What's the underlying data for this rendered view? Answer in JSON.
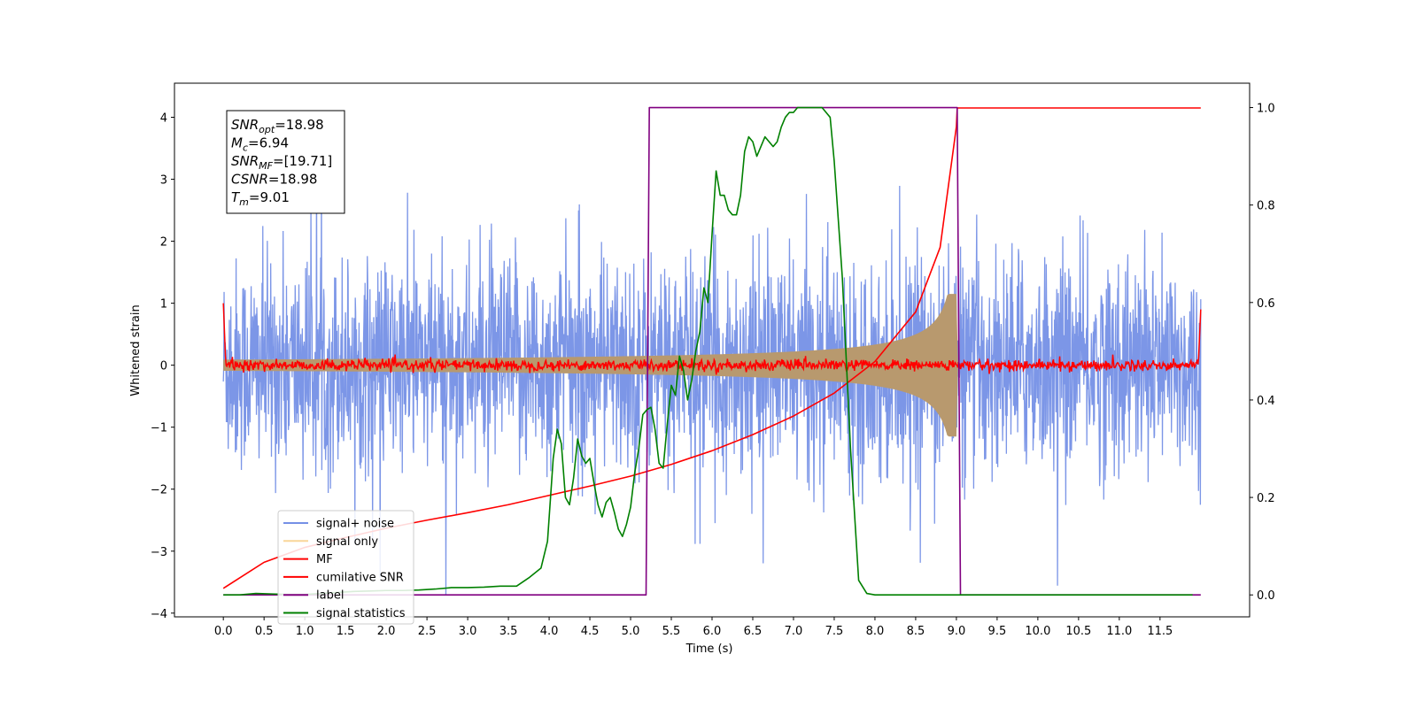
{
  "chart_data": {
    "type": "line",
    "xlabel": "Time (s)",
    "ylabel": "Whitened strain",
    "xlim": [
      -0.6,
      12.6
    ],
    "ylim": [
      -4.06,
      4.55
    ],
    "y2lim": [
      -0.045,
      1.05
    ],
    "x_ticks": [
      "0.0",
      "0.5",
      "1.0",
      "1.5",
      "2.0",
      "2.5",
      "3.0",
      "3.5",
      "4.0",
      "4.5",
      "5.0",
      "5.5",
      "6.0",
      "6.5",
      "7.0",
      "7.5",
      "8.0",
      "8.5",
      "9.0",
      "9.5",
      "10.0",
      "10.5",
      "11.0",
      "11.5"
    ],
    "y_ticks": [
      "4",
      "3",
      "2",
      "1",
      "0",
      "−1",
      "−2",
      "−3",
      "−4"
    ],
    "y2_ticks": [
      "1.0",
      "0.8",
      "0.6",
      "0.4",
      "0.2",
      "0.0"
    ],
    "grid": false,
    "legend_position": "lower-left",
    "annotations": [
      {
        "base": "SNR",
        "sub": "opt",
        "value": "=18.98"
      },
      {
        "base": "M",
        "sub": "c",
        "value": "=6.94"
      },
      {
        "base": "SNR",
        "sub": "MF",
        "value": "=[19.71]"
      },
      {
        "base": "CSNR",
        "sub": "",
        "value": "=18.98"
      },
      {
        "base": "T",
        "sub": "m",
        "value": "=9.01"
      }
    ],
    "series": [
      {
        "name": "signal+ noise",
        "color": "#7590e6",
        "axis": "left",
        "description_values": {
          "x_range": [
            0,
            12
          ],
          "amplitude_range": [
            -3.7,
            4.15
          ]
        }
      },
      {
        "name": "signal only",
        "color": "#f7c46c",
        "axis": "left",
        "description_values": {
          "peak_time": 9.0,
          "peak_amplitude": 1.1
        }
      },
      {
        "name": "MF",
        "color": "#ff0000",
        "axis": "left",
        "description_values": {
          "level": 0.0,
          "start": 1.0,
          "end": 0.9
        }
      },
      {
        "name": "cumilative SNR",
        "color": "#ff0000",
        "axis": "left",
        "x": [
          0.0,
          0.5,
          1.0,
          1.5,
          2.0,
          2.5,
          3.0,
          3.5,
          4.0,
          4.5,
          5.0,
          5.5,
          6.0,
          6.5,
          7.0,
          7.5,
          8.0,
          8.5,
          8.8,
          9.0,
          9.01,
          12.0
        ],
        "values": [
          -3.6,
          -3.18,
          -2.94,
          -2.78,
          -2.63,
          -2.5,
          -2.38,
          -2.25,
          -2.1,
          -1.95,
          -1.79,
          -1.6,
          -1.38,
          -1.12,
          -0.82,
          -0.45,
          0.06,
          0.86,
          1.9,
          3.85,
          4.15,
          4.15
        ]
      },
      {
        "name": "label",
        "color": "#800080",
        "axis": "right",
        "x": [
          0.0,
          5.19,
          5.21,
          5.23,
          9.0,
          9.01,
          9.05,
          12.0
        ],
        "values": [
          0,
          0,
          0.5,
          1,
          1,
          1,
          0,
          0
        ]
      },
      {
        "name": "signal statistics",
        "color": "#008000",
        "axis": "right",
        "x": [
          0.0,
          0.2,
          0.4,
          0.6,
          0.8,
          1.0,
          1.2,
          1.4,
          1.6,
          1.8,
          2.0,
          2.2,
          2.4,
          2.6,
          2.8,
          3.0,
          3.2,
          3.4,
          3.6,
          3.75,
          3.9,
          3.98,
          4.05,
          4.1,
          4.15,
          4.2,
          4.25,
          4.3,
          4.35,
          4.4,
          4.45,
          4.5,
          4.55,
          4.6,
          4.65,
          4.7,
          4.75,
          4.8,
          4.85,
          4.9,
          4.95,
          5.0,
          5.05,
          5.1,
          5.15,
          5.2,
          5.25,
          5.3,
          5.35,
          5.4,
          5.45,
          5.5,
          5.55,
          5.6,
          5.65,
          5.7,
          5.75,
          5.8,
          5.85,
          5.9,
          5.95,
          6.0,
          6.05,
          6.1,
          6.15,
          6.2,
          6.25,
          6.3,
          6.35,
          6.4,
          6.45,
          6.5,
          6.55,
          6.6,
          6.65,
          6.7,
          6.75,
          6.8,
          6.85,
          6.9,
          6.95,
          7.0,
          7.05,
          7.1,
          7.15,
          7.2,
          7.25,
          7.3,
          7.35,
          7.4,
          7.45,
          7.5,
          7.6,
          7.7,
          7.8,
          7.9,
          8.0,
          8.2,
          8.4,
          8.6,
          8.8,
          8.9,
          8.95,
          9.0,
          9.03,
          9.06,
          9.1,
          9.2,
          9.4,
          10.0,
          11.0,
          11.9
        ],
        "values": [
          0.0,
          0.0,
          0.003,
          0.002,
          0.001,
          0.001,
          0.003,
          0.005,
          0.007,
          0.008,
          0.009,
          0.009,
          0.01,
          0.012,
          0.015,
          0.015,
          0.016,
          0.018,
          0.018,
          0.035,
          0.055,
          0.11,
          0.28,
          0.34,
          0.31,
          0.2,
          0.185,
          0.24,
          0.32,
          0.285,
          0.27,
          0.28,
          0.23,
          0.185,
          0.16,
          0.19,
          0.2,
          0.17,
          0.135,
          0.12,
          0.145,
          0.18,
          0.25,
          0.3,
          0.37,
          0.38,
          0.385,
          0.34,
          0.27,
          0.26,
          0.35,
          0.43,
          0.41,
          0.49,
          0.46,
          0.4,
          0.44,
          0.5,
          0.54,
          0.63,
          0.6,
          0.74,
          0.87,
          0.82,
          0.82,
          0.79,
          0.78,
          0.78,
          0.82,
          0.91,
          0.94,
          0.93,
          0.9,
          0.92,
          0.94,
          0.93,
          0.92,
          0.93,
          0.96,
          0.98,
          0.99,
          0.99,
          1.0,
          1.0,
          1.0,
          1.0,
          1.0,
          1.0,
          1.0,
          0.99,
          0.98,
          0.89,
          0.65,
          0.3,
          0.03,
          0.003,
          0.0,
          0.0,
          0.0,
          0.0,
          0.0,
          0.0,
          0.0,
          0.0,
          0.0,
          0.0,
          0.0,
          0.0,
          0.0,
          0.0,
          0.0,
          0.0
        ]
      }
    ]
  }
}
